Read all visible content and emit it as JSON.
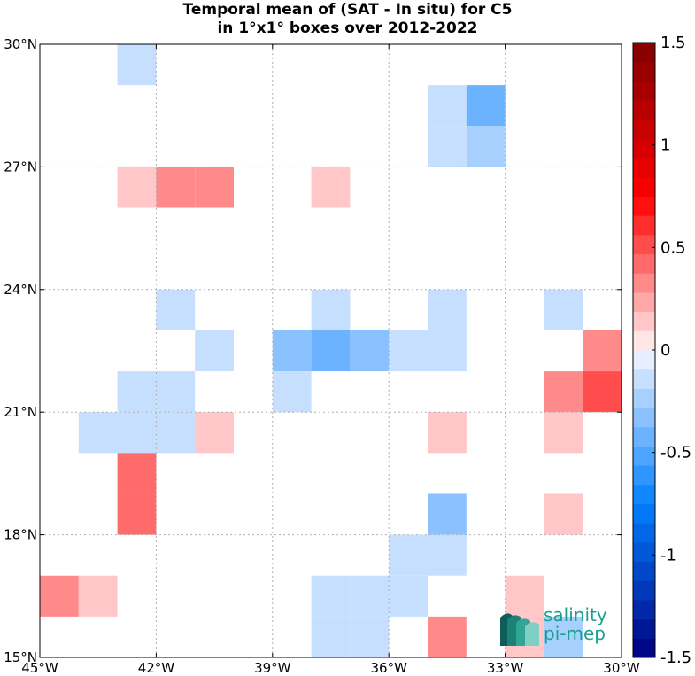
{
  "chart_data": {
    "type": "heatmap",
    "title_line1": "Temporal mean of (SAT - In situ) for C5",
    "title_line2": "in 1°x1° boxes over 2012-2022",
    "x_range": [
      -45,
      -30
    ],
    "y_range": [
      15,
      30
    ],
    "x_ticks": [
      -45,
      -42,
      -39,
      -36,
      -33,
      -30
    ],
    "x_tick_labels": [
      "45°W",
      "42°W",
      "39°W",
      "36°W",
      "33°W",
      "30°W"
    ],
    "y_ticks": [
      15,
      18,
      21,
      24,
      27,
      30
    ],
    "y_tick_labels": [
      "15°N",
      "18°N",
      "21°N",
      "24°N",
      "27°N",
      "30°N"
    ],
    "grid": true,
    "color_range": [
      -1.5,
      1.5
    ],
    "colorbar_ticks": [
      1.5,
      1,
      0.5,
      0,
      -0.5,
      -1,
      -1.5
    ],
    "colorbar_tick_labels": [
      "1.5",
      "1",
      "0.5",
      "0",
      "-0.5",
      "-1",
      "-1.5"
    ],
    "colorbar_levels": 32,
    "cell_size_deg": 1,
    "cells": [
      {
        "lon": -43,
        "lat": 29,
        "value": -0.15
      },
      {
        "lon": -35,
        "lat": 28,
        "value": -0.15
      },
      {
        "lon": -34,
        "lat": 28,
        "value": -0.4
      },
      {
        "lon": -35,
        "lat": 27,
        "value": -0.15
      },
      {
        "lon": -34,
        "lat": 27,
        "value": -0.25
      },
      {
        "lon": -43,
        "lat": 26,
        "value": 0.15
      },
      {
        "lon": -42,
        "lat": 26,
        "value": 0.3
      },
      {
        "lon": -41,
        "lat": 26,
        "value": 0.3
      },
      {
        "lon": -38,
        "lat": 26,
        "value": 0.15
      },
      {
        "lon": -42,
        "lat": 23,
        "value": -0.15
      },
      {
        "lon": -38,
        "lat": 23,
        "value": -0.15
      },
      {
        "lon": -35,
        "lat": 23,
        "value": -0.15
      },
      {
        "lon": -32,
        "lat": 23,
        "value": -0.15
      },
      {
        "lon": -41,
        "lat": 22,
        "value": -0.15
      },
      {
        "lon": -39,
        "lat": 22,
        "value": -0.3
      },
      {
        "lon": -38,
        "lat": 22,
        "value": -0.4
      },
      {
        "lon": -37,
        "lat": 22,
        "value": -0.3
      },
      {
        "lon": -36,
        "lat": 22,
        "value": -0.15
      },
      {
        "lon": -35,
        "lat": 22,
        "value": -0.15
      },
      {
        "lon": -31,
        "lat": 22,
        "value": 0.3
      },
      {
        "lon": -43,
        "lat": 21,
        "value": -0.15
      },
      {
        "lon": -42,
        "lat": 21,
        "value": -0.15
      },
      {
        "lon": -39,
        "lat": 21,
        "value": -0.15
      },
      {
        "lon": -32,
        "lat": 21,
        "value": 0.35
      },
      {
        "lon": -31,
        "lat": 21,
        "value": 0.5
      },
      {
        "lon": -44,
        "lat": 20,
        "value": -0.15
      },
      {
        "lon": -43,
        "lat": 20,
        "value": -0.15
      },
      {
        "lon": -42,
        "lat": 20,
        "value": -0.15
      },
      {
        "lon": -41,
        "lat": 20,
        "value": 0.15
      },
      {
        "lon": -35,
        "lat": 20,
        "value": 0.15
      },
      {
        "lon": -32,
        "lat": 20,
        "value": 0.15
      },
      {
        "lon": -43,
        "lat": 19,
        "value": 0.45
      },
      {
        "lon": -43,
        "lat": 18,
        "value": 0.45
      },
      {
        "lon": -35,
        "lat": 18,
        "value": -0.3
      },
      {
        "lon": -32,
        "lat": 18,
        "value": 0.15
      },
      {
        "lon": -36,
        "lat": 17,
        "value": -0.15
      },
      {
        "lon": -35,
        "lat": 17,
        "value": -0.15
      },
      {
        "lon": -45,
        "lat": 16,
        "value": 0.3
      },
      {
        "lon": -44,
        "lat": 16,
        "value": 0.15
      },
      {
        "lon": -38,
        "lat": 16,
        "value": -0.15
      },
      {
        "lon": -37,
        "lat": 16,
        "value": -0.15
      },
      {
        "lon": -36,
        "lat": 16,
        "value": -0.15
      },
      {
        "lon": -33,
        "lat": 16,
        "value": 0.15
      },
      {
        "lon": -38,
        "lat": 15,
        "value": -0.15
      },
      {
        "lon": -37,
        "lat": 15,
        "value": -0.15
      },
      {
        "lon": -35,
        "lat": 15,
        "value": 0.3
      },
      {
        "lon": -33,
        "lat": 15,
        "value": 0.15
      },
      {
        "lon": -32,
        "lat": 15,
        "value": -0.25
      }
    ]
  },
  "logo": {
    "line1": "salinity",
    "line2": "pi-mep",
    "color": "#1aa08f"
  }
}
